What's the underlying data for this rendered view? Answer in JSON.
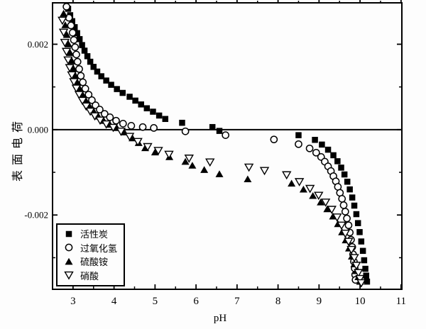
{
  "figure": {
    "background": "#fdfdfd",
    "ink": "#000000"
  },
  "chart_data": {
    "type": "scatter",
    "title": "",
    "xlabel": "pH",
    "ylabel": "表面电荷",
    "xlim": [
      2.5,
      11.02
    ],
    "ylim": [
      -0.00374,
      0.00297
    ],
    "grid": false,
    "zero_line": true,
    "legend_position": "lower-left",
    "x_major_ticks": [
      3,
      4,
      5,
      6,
      7,
      8,
      9,
      10,
      11
    ],
    "x_major_tick_labels": [
      "3",
      "4",
      "5",
      "6",
      "7",
      "8",
      "9",
      "10",
      "11"
    ],
    "x_minor_ticks": [
      3.5,
      4.5,
      5.5,
      6.5,
      7.5,
      8.5,
      9.5,
      10.5
    ],
    "y_major_ticks": [
      0.002,
      0.0,
      -0.002
    ],
    "y_major_tick_labels": [
      "0.002",
      "0.000",
      "-0.002"
    ],
    "y_minor_ticks": [
      0.001,
      -0.001,
      -0.003
    ],
    "series": [
      {
        "name": "活性炭",
        "marker": "filled-square",
        "points": [
          [
            2.88,
            0.00283
          ],
          [
            2.93,
            0.00268
          ],
          [
            2.98,
            0.00254
          ],
          [
            3.04,
            0.0024
          ],
          [
            3.1,
            0.00226
          ],
          [
            3.16,
            0.00212
          ],
          [
            3.22,
            0.00198
          ],
          [
            3.28,
            0.00185
          ],
          [
            3.35,
            0.00172
          ],
          [
            3.42,
            0.00159
          ],
          [
            3.5,
            0.00147
          ],
          [
            3.59,
            0.00136
          ],
          [
            3.69,
            0.00125
          ],
          [
            3.81,
            0.00115
          ],
          [
            3.93,
            0.00105
          ],
          [
            4.07,
            0.00095
          ],
          [
            4.21,
            0.00086
          ],
          [
            4.38,
            0.00077
          ],
          [
            4.52,
            0.00068
          ],
          [
            4.66,
            0.00059
          ],
          [
            4.8,
            0.0005
          ],
          [
            4.95,
            0.00042
          ],
          [
            5.1,
            0.00033
          ],
          [
            5.25,
            0.00025
          ],
          [
            5.66,
            0.00016
          ],
          [
            6.4,
            6e-05
          ],
          [
            6.57,
            -3e-05
          ],
          [
            8.5,
            -0.00013
          ],
          [
            8.9,
            -0.00024
          ],
          [
            9.07,
            -0.00035
          ],
          [
            9.22,
            -0.00047
          ],
          [
            9.35,
            -0.0006
          ],
          [
            9.45,
            -0.00074
          ],
          [
            9.54,
            -0.00089
          ],
          [
            9.62,
            -0.00105
          ],
          [
            9.69,
            -0.00122
          ],
          [
            9.75,
            -0.0014
          ],
          [
            9.81,
            -0.00159
          ],
          [
            9.86,
            -0.00178
          ],
          [
            9.91,
            -0.00198
          ],
          [
            9.95,
            -0.00219
          ],
          [
            9.99,
            -0.0024
          ],
          [
            10.03,
            -0.00262
          ],
          [
            10.07,
            -0.00284
          ],
          [
            10.1,
            -0.00306
          ],
          [
            10.13,
            -0.00326
          ],
          [
            10.15,
            -0.00342
          ],
          [
            10.17,
            -0.00356
          ]
        ]
      },
      {
        "name": "过氧化氢",
        "marker": "open-circle",
        "points": [
          [
            2.84,
            0.00288
          ],
          [
            2.9,
            0.00262
          ],
          [
            2.95,
            0.00244
          ],
          [
            2.99,
            0.00227
          ],
          [
            3.02,
            0.0021
          ],
          [
            3.05,
            0.00193
          ],
          [
            3.08,
            0.00176
          ],
          [
            3.11,
            0.00159
          ],
          [
            3.15,
            0.00142
          ],
          [
            3.19,
            0.00126
          ],
          [
            3.24,
            0.00111
          ],
          [
            3.3,
            0.00096
          ],
          [
            3.38,
            0.00082
          ],
          [
            3.46,
            0.00069
          ],
          [
            3.55,
            0.00057
          ],
          [
            3.65,
            0.00047
          ],
          [
            3.77,
            0.00037
          ],
          [
            3.9,
            0.00029
          ],
          [
            4.05,
            0.00021
          ],
          [
            4.22,
            0.00014
          ],
          [
            4.42,
            9e-05
          ],
          [
            4.7,
            6e-05
          ],
          [
            4.97,
            4e-05
          ],
          [
            5.74,
            -4e-05
          ],
          [
            6.72,
            -0.00013
          ],
          [
            7.9,
            -0.00023
          ],
          [
            8.5,
            -0.00034
          ],
          [
            8.77,
            -0.00044
          ],
          [
            8.93,
            -0.00054
          ],
          [
            9.05,
            -0.00064
          ],
          [
            9.14,
            -0.00075
          ],
          [
            9.22,
            -0.00086
          ],
          [
            9.29,
            -0.00097
          ],
          [
            9.35,
            -0.00109
          ],
          [
            9.41,
            -0.00121
          ],
          [
            9.46,
            -0.00134
          ],
          [
            9.51,
            -0.00148
          ],
          [
            9.56,
            -0.00162
          ],
          [
            9.6,
            -0.00177
          ],
          [
            9.64,
            -0.00192
          ],
          [
            9.68,
            -0.00208
          ],
          [
            9.72,
            -0.00224
          ],
          [
            9.75,
            -0.00241
          ],
          [
            9.78,
            -0.00258
          ],
          [
            9.81,
            -0.00275
          ],
          [
            9.83,
            -0.00292
          ],
          [
            9.85,
            -0.00309
          ],
          [
            9.87,
            -0.00325
          ],
          [
            9.88,
            -0.0034
          ],
          [
            9.89,
            -0.00352
          ]
        ]
      },
      {
        "name": "硫酸铵",
        "marker": "filled-triangle-up",
        "points": [
          [
            2.77,
            0.00272
          ],
          [
            2.81,
            0.00245
          ],
          [
            2.85,
            0.00222
          ],
          [
            2.89,
            0.002
          ],
          [
            2.93,
            0.0018
          ],
          [
            2.97,
            0.00161
          ],
          [
            3.01,
            0.00143
          ],
          [
            3.06,
            0.00126
          ],
          [
            3.11,
            0.0011
          ],
          [
            3.17,
            0.00095
          ],
          [
            3.24,
            0.00081
          ],
          [
            3.32,
            0.00067
          ],
          [
            3.41,
            0.00054
          ],
          [
            3.51,
            0.00042
          ],
          [
            3.62,
            0.00031
          ],
          [
            3.75,
            0.00021
          ],
          [
            3.9,
            0.00012
          ],
          [
            4.07,
            4e-05
          ],
          [
            4.25,
            -6e-05
          ],
          [
            4.45,
            -0.0002
          ],
          [
            4.6,
            -0.00031
          ],
          [
            4.76,
            -0.00043
          ],
          [
            5.0,
            -0.00053
          ],
          [
            5.35,
            -0.00064
          ],
          [
            5.74,
            -0.00075
          ],
          [
            5.91,
            -0.00084
          ],
          [
            6.2,
            -0.00094
          ],
          [
            6.57,
            -0.00104
          ],
          [
            7.26,
            -0.00116
          ],
          [
            8.33,
            -0.00126
          ],
          [
            8.62,
            -0.0014
          ],
          [
            8.85,
            -0.00155
          ],
          [
            9.04,
            -0.0017
          ],
          [
            9.2,
            -0.00186
          ],
          [
            9.34,
            -0.00203
          ],
          [
            9.46,
            -0.00221
          ],
          [
            9.56,
            -0.0024
          ],
          [
            9.65,
            -0.00259
          ],
          [
            9.73,
            -0.00278
          ],
          [
            9.8,
            -0.00297
          ],
          [
            9.86,
            -0.00315
          ],
          [
            9.91,
            -0.00331
          ],
          [
            9.96,
            -0.00345
          ],
          [
            10.0,
            -0.00356
          ]
        ]
      },
      {
        "name": "硝酸",
        "marker": "open-triangle-down",
        "points": [
          [
            2.74,
            0.00256
          ],
          [
            2.77,
            0.00228
          ],
          [
            2.8,
            0.00204
          ],
          [
            2.84,
            0.00183
          ],
          [
            2.88,
            0.00163
          ],
          [
            2.92,
            0.00145
          ],
          [
            2.97,
            0.00128
          ],
          [
            3.02,
            0.00112
          ],
          [
            3.08,
            0.00097
          ],
          [
            3.15,
            0.00082
          ],
          [
            3.23,
            0.00068
          ],
          [
            3.32,
            0.00055
          ],
          [
            3.42,
            0.00043
          ],
          [
            3.53,
            0.00032
          ],
          [
            3.66,
            0.00022
          ],
          [
            3.81,
            0.00013
          ],
          [
            3.98,
            5e-05
          ],
          [
            4.17,
            -4e-05
          ],
          [
            4.38,
            -0.00016
          ],
          [
            4.58,
            -0.00028
          ],
          [
            4.82,
            -0.0004
          ],
          [
            5.08,
            -0.00049
          ],
          [
            5.34,
            -0.00058
          ],
          [
            5.83,
            -0.00067
          ],
          [
            6.34,
            -0.00076
          ],
          [
            7.29,
            -0.00088
          ],
          [
            7.67,
            -0.00096
          ],
          [
            8.21,
            -0.00106
          ],
          [
            8.52,
            -0.00122
          ],
          [
            8.78,
            -0.00138
          ],
          [
            8.99,
            -0.00154
          ],
          [
            9.16,
            -0.0017
          ],
          [
            9.31,
            -0.00187
          ],
          [
            9.44,
            -0.00205
          ],
          [
            9.55,
            -0.00224
          ],
          [
            9.64,
            -0.00243
          ],
          [
            9.72,
            -0.00262
          ],
          [
            9.79,
            -0.00281
          ],
          [
            9.86,
            -0.003
          ],
          [
            9.91,
            -0.00318
          ],
          [
            9.96,
            -0.00335
          ],
          [
            10.0,
            -0.00349
          ],
          [
            10.03,
            -0.00359
          ]
        ]
      }
    ]
  }
}
